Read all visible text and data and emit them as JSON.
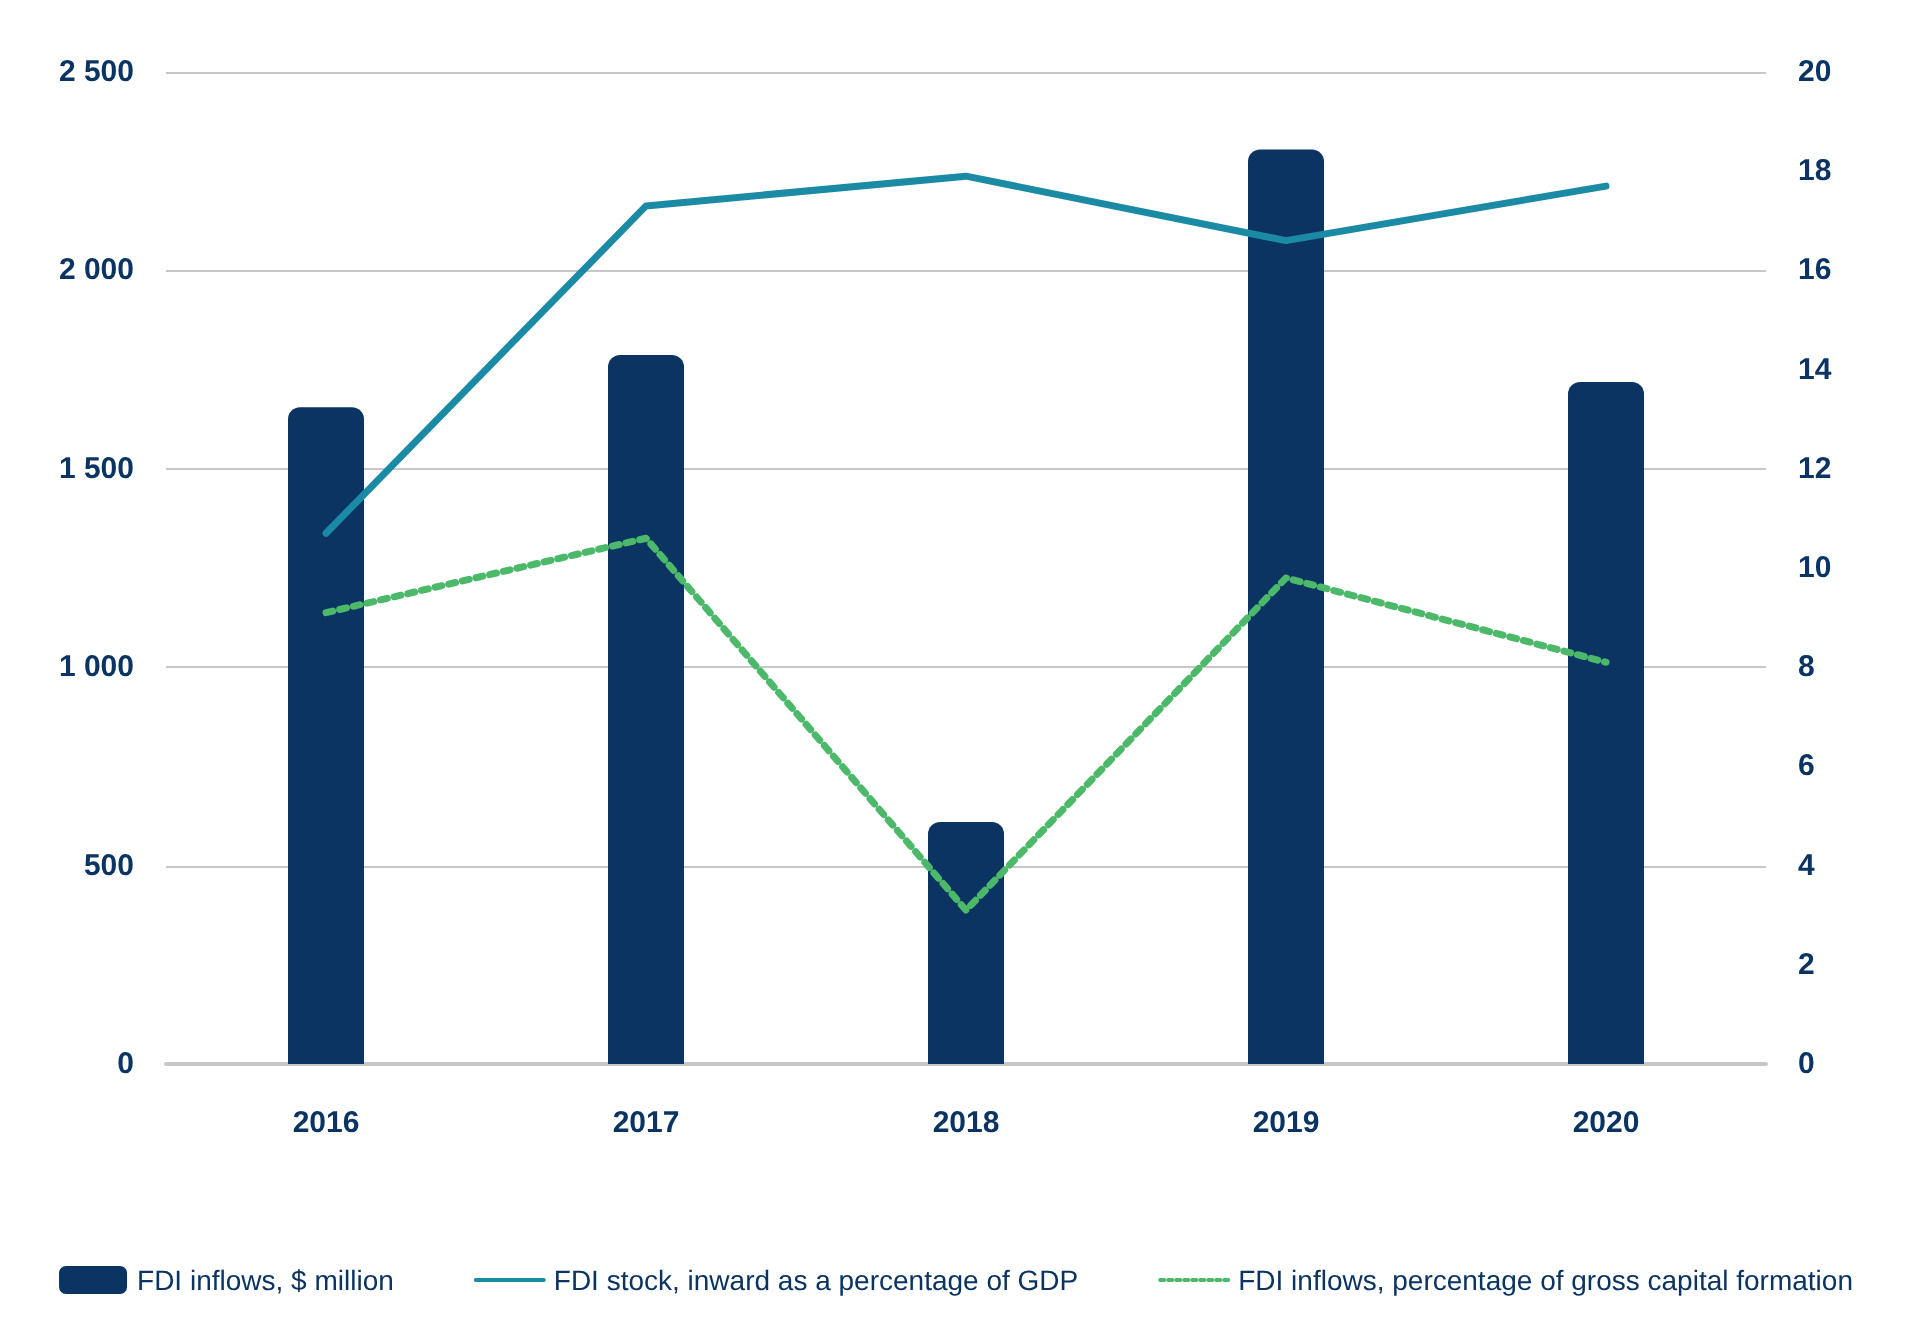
{
  "chart_data": {
    "type": "bar",
    "categories": [
      "2016",
      "2017",
      "2018",
      "2019",
      "2020"
    ],
    "series": [
      {
        "name": "FDI inflows, $ million",
        "color": "#0b3462",
        "values": [
          1655,
          1787,
          610,
          2305,
          1719
        ]
      },
      {
        "name": "FDI stock, inward as a percentage of GDP",
        "type": "line",
        "axis": "y2",
        "color": "#1a8aa5",
        "line_style": "solid",
        "values": [
          10.7,
          17.3,
          17.9,
          16.6,
          17.7
        ]
      },
      {
        "name": "FDI inflows, percentage of gross capital formation",
        "type": "line",
        "axis": "y2",
        "color": "#4cb86a",
        "line_style": "dotted",
        "values": [
          9.1,
          10.6,
          3.1,
          9.8,
          8.1
        ]
      }
    ],
    "ylim": [
      0,
      2500
    ],
    "yticks": [
      0,
      500,
      {
        "value": 1000,
        "label": "1 000"
      },
      {
        "value": 1500,
        "label": "1 500"
      },
      {
        "value": 2000,
        "label": "2 000"
      },
      {
        "value": 2500,
        "label": "2 500"
      }
    ],
    "y2lim": [
      0,
      20
    ],
    "y2ticks": [
      0,
      2,
      4,
      6,
      8,
      10,
      12,
      14,
      16,
      18,
      20
    ],
    "grid": "y",
    "legend": "bottom",
    "marker": "none"
  }
}
